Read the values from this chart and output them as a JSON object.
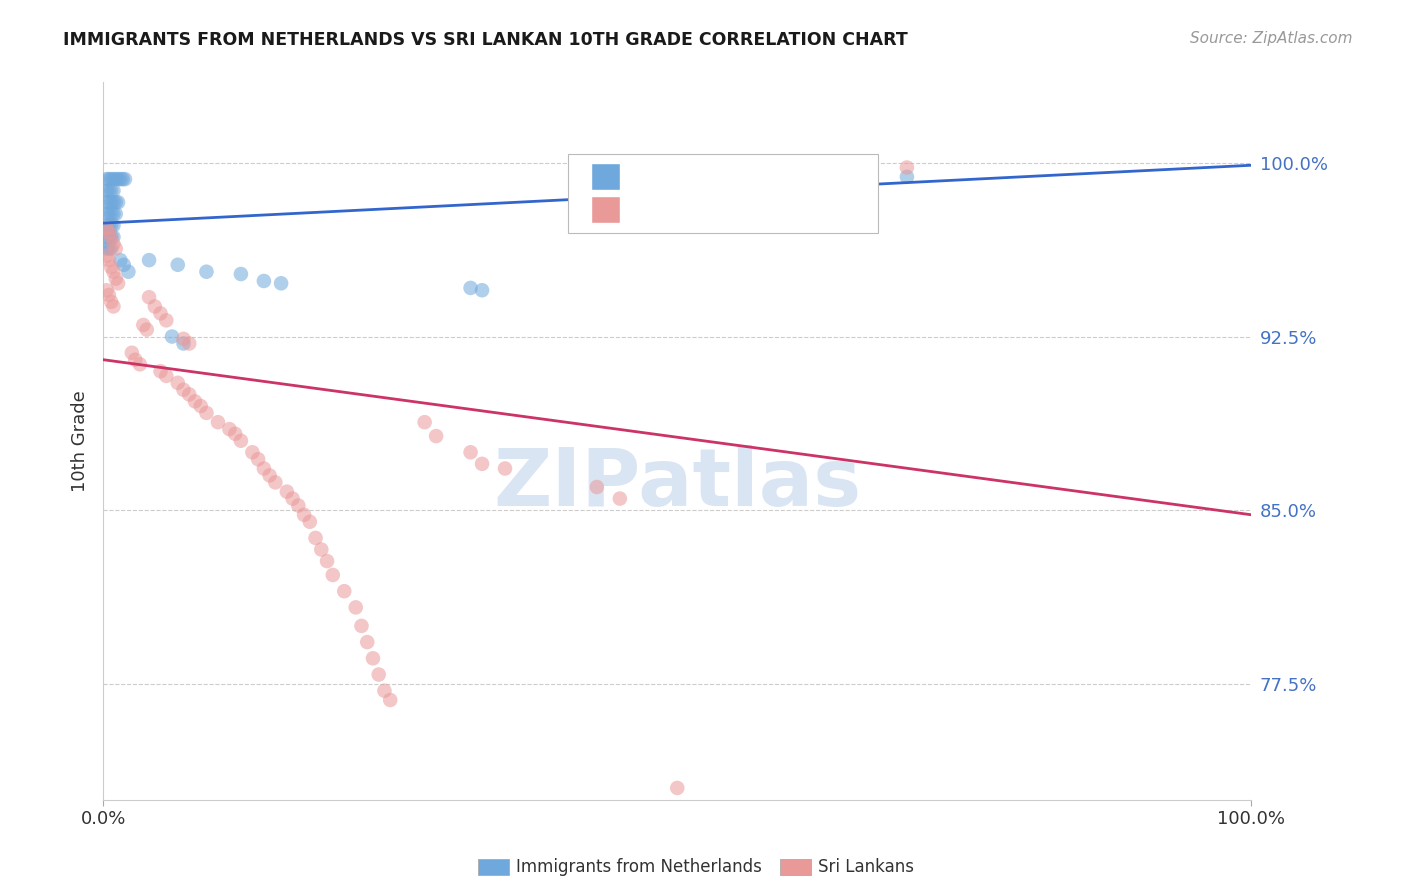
{
  "title": "IMMIGRANTS FROM NETHERLANDS VS SRI LANKAN 10TH GRADE CORRELATION CHART",
  "source": "Source: ZipAtlas.com",
  "ylabel": "10th Grade",
  "ytick_labels": [
    "100.0%",
    "92.5%",
    "85.0%",
    "77.5%"
  ],
  "ytick_values": [
    1.0,
    0.925,
    0.85,
    0.775
  ],
  "xlim": [
    0.0,
    1.0
  ],
  "ylim": [
    0.725,
    1.035
  ],
  "blue_color": "#6fa8dc",
  "pink_color": "#ea9999",
  "blue_line_color": "#3366cc",
  "pink_line_color": "#cc3366",
  "watermark": "ZIPatlas",
  "grid_color": "#cccccc",
  "blue_scatter": [
    [
      0.003,
      0.993
    ],
    [
      0.005,
      0.993
    ],
    [
      0.007,
      0.993
    ],
    [
      0.009,
      0.993
    ],
    [
      0.011,
      0.993
    ],
    [
      0.013,
      0.993
    ],
    [
      0.015,
      0.993
    ],
    [
      0.017,
      0.993
    ],
    [
      0.019,
      0.993
    ],
    [
      0.003,
      0.988
    ],
    [
      0.005,
      0.988
    ],
    [
      0.007,
      0.988
    ],
    [
      0.009,
      0.988
    ],
    [
      0.003,
      0.983
    ],
    [
      0.005,
      0.983
    ],
    [
      0.007,
      0.983
    ],
    [
      0.009,
      0.983
    ],
    [
      0.011,
      0.983
    ],
    [
      0.013,
      0.983
    ],
    [
      0.003,
      0.978
    ],
    [
      0.005,
      0.978
    ],
    [
      0.007,
      0.978
    ],
    [
      0.009,
      0.978
    ],
    [
      0.011,
      0.978
    ],
    [
      0.003,
      0.973
    ],
    [
      0.005,
      0.973
    ],
    [
      0.007,
      0.973
    ],
    [
      0.009,
      0.973
    ],
    [
      0.003,
      0.968
    ],
    [
      0.005,
      0.968
    ],
    [
      0.007,
      0.968
    ],
    [
      0.009,
      0.968
    ],
    [
      0.003,
      0.963
    ],
    [
      0.005,
      0.963
    ],
    [
      0.007,
      0.963
    ],
    [
      0.04,
      0.958
    ],
    [
      0.065,
      0.956
    ],
    [
      0.09,
      0.953
    ],
    [
      0.12,
      0.952
    ],
    [
      0.14,
      0.949
    ],
    [
      0.155,
      0.948
    ],
    [
      0.06,
      0.925
    ],
    [
      0.07,
      0.922
    ],
    [
      0.32,
      0.946
    ],
    [
      0.33,
      0.945
    ],
    [
      0.55,
      0.994
    ],
    [
      0.7,
      0.994
    ],
    [
      0.015,
      0.958
    ],
    [
      0.018,
      0.956
    ],
    [
      0.022,
      0.953
    ]
  ],
  "pink_scatter": [
    [
      0.003,
      0.972
    ],
    [
      0.005,
      0.97
    ],
    [
      0.007,
      0.968
    ],
    [
      0.009,
      0.965
    ],
    [
      0.011,
      0.963
    ],
    [
      0.003,
      0.96
    ],
    [
      0.005,
      0.958
    ],
    [
      0.007,
      0.955
    ],
    [
      0.009,
      0.953
    ],
    [
      0.011,
      0.95
    ],
    [
      0.013,
      0.948
    ],
    [
      0.003,
      0.945
    ],
    [
      0.005,
      0.943
    ],
    [
      0.007,
      0.94
    ],
    [
      0.009,
      0.938
    ],
    [
      0.04,
      0.942
    ],
    [
      0.045,
      0.938
    ],
    [
      0.05,
      0.935
    ],
    [
      0.055,
      0.932
    ],
    [
      0.035,
      0.93
    ],
    [
      0.038,
      0.928
    ],
    [
      0.07,
      0.924
    ],
    [
      0.075,
      0.922
    ],
    [
      0.025,
      0.918
    ],
    [
      0.028,
      0.915
    ],
    [
      0.032,
      0.913
    ],
    [
      0.05,
      0.91
    ],
    [
      0.055,
      0.908
    ],
    [
      0.065,
      0.905
    ],
    [
      0.07,
      0.902
    ],
    [
      0.075,
      0.9
    ],
    [
      0.08,
      0.897
    ],
    [
      0.085,
      0.895
    ],
    [
      0.09,
      0.892
    ],
    [
      0.1,
      0.888
    ],
    [
      0.11,
      0.885
    ],
    [
      0.115,
      0.883
    ],
    [
      0.12,
      0.88
    ],
    [
      0.13,
      0.875
    ],
    [
      0.135,
      0.872
    ],
    [
      0.14,
      0.868
    ],
    [
      0.145,
      0.865
    ],
    [
      0.15,
      0.862
    ],
    [
      0.16,
      0.858
    ],
    [
      0.165,
      0.855
    ],
    [
      0.17,
      0.852
    ],
    [
      0.175,
      0.848
    ],
    [
      0.18,
      0.845
    ],
    [
      0.185,
      0.838
    ],
    [
      0.19,
      0.833
    ],
    [
      0.195,
      0.828
    ],
    [
      0.2,
      0.822
    ],
    [
      0.21,
      0.815
    ],
    [
      0.22,
      0.808
    ],
    [
      0.225,
      0.8
    ],
    [
      0.23,
      0.793
    ],
    [
      0.235,
      0.786
    ],
    [
      0.24,
      0.779
    ],
    [
      0.245,
      0.772
    ],
    [
      0.25,
      0.768
    ],
    [
      0.28,
      0.888
    ],
    [
      0.29,
      0.882
    ],
    [
      0.32,
      0.875
    ],
    [
      0.33,
      0.87
    ],
    [
      0.35,
      0.868
    ],
    [
      0.43,
      0.86
    ],
    [
      0.45,
      0.855
    ],
    [
      0.5,
      0.73
    ],
    [
      0.55,
      0.998
    ],
    [
      0.7,
      0.998
    ]
  ],
  "blue_trendline_x": [
    0.0,
    1.0
  ],
  "blue_trendline_y": [
    0.974,
    0.999
  ],
  "pink_trendline_x": [
    0.0,
    1.0
  ],
  "pink_trendline_y": [
    0.915,
    0.848
  ]
}
